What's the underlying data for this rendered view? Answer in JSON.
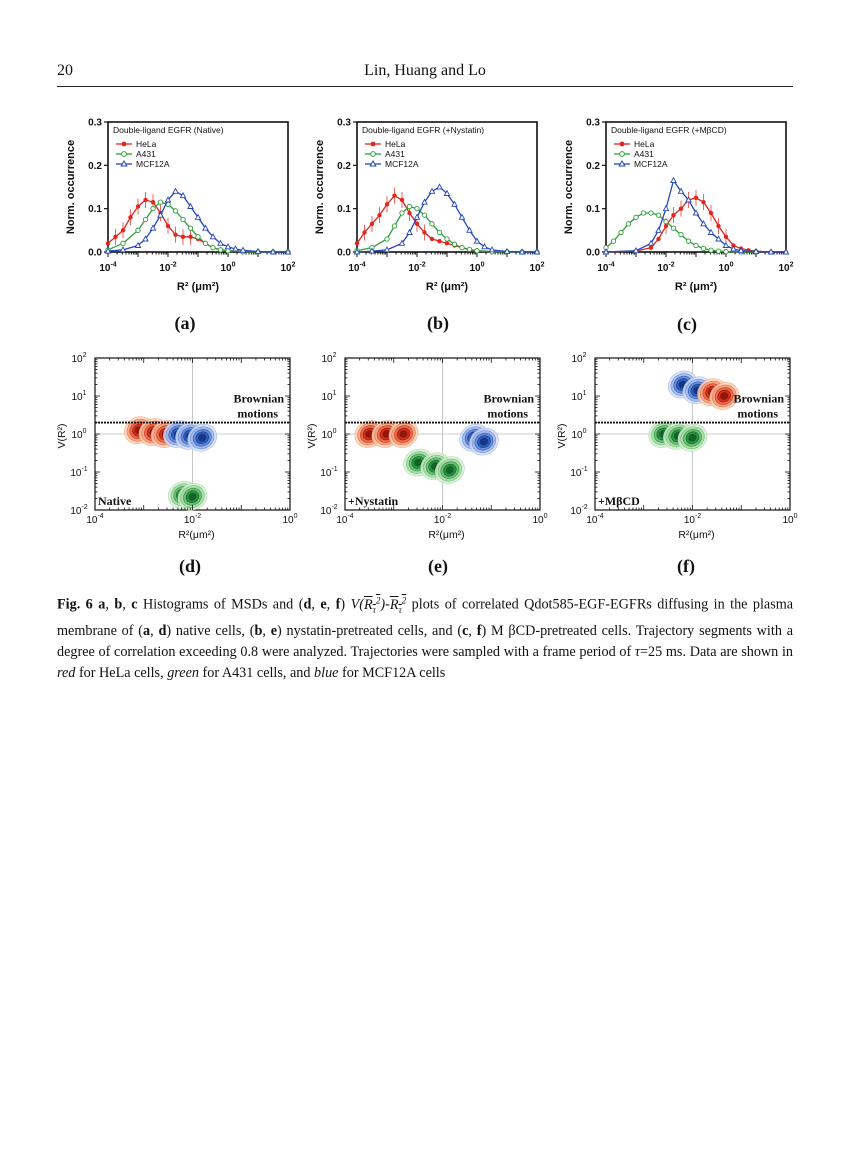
{
  "header": {
    "page_number": "20",
    "running_head": "Lin, Huang and Lo"
  },
  "colors": {
    "hela": "#e0261f",
    "a431": "#2e9e3a",
    "mcf12a": "#2547b8"
  },
  "panel_labels": [
    "(a)",
    "(b)",
    "(c)",
    "(d)",
    "(e)",
    "(f)"
  ],
  "chart_data": [
    {
      "id": "a",
      "type": "line",
      "title": "Double-ligand EGFR (Native)",
      "xlabel": "R² (μm²)",
      "ylabel": "Norm. occurrence",
      "xscale": "log",
      "xlim": [
        0.0001,
        100
      ],
      "ylim": [
        0,
        0.3
      ],
      "yticks": [
        "0.0",
        "0.1",
        "0.2",
        "0.3"
      ],
      "xticks": [
        "10^-4",
        "10^-2",
        "10^0",
        "10^2"
      ],
      "legend": "top-left",
      "series": [
        {
          "name": "HeLa",
          "x": [
            -4,
            -3.75,
            -3.5,
            -3.25,
            -3,
            -2.75,
            -2.5,
            -2.25,
            -2,
            -1.75,
            -1.5,
            -1.25,
            -1,
            -0.75,
            -0.5,
            -0.25,
            0,
            0.5,
            1
          ],
          "y": [
            0.02,
            0.035,
            0.05,
            0.08,
            0.105,
            0.12,
            0.115,
            0.09,
            0.06,
            0.04,
            0.035,
            0.035,
            0.03,
            0.02,
            0.01,
            0.005,
            0.002,
            0.001,
            0
          ]
        },
        {
          "name": "A431",
          "x": [
            -4,
            -3.5,
            -3,
            -2.75,
            -2.5,
            -2.25,
            -2,
            -1.75,
            -1.5,
            -1.25,
            -1,
            -0.75,
            -0.5,
            -0.25,
            0,
            0.5,
            1,
            1.5,
            2
          ],
          "y": [
            0.005,
            0.02,
            0.05,
            0.075,
            0.1,
            0.115,
            0.11,
            0.095,
            0.075,
            0.055,
            0.035,
            0.02,
            0.01,
            0.005,
            0.003,
            0.001,
            0,
            0,
            0
          ]
        },
        {
          "name": "MCF12A",
          "x": [
            -4,
            -3.5,
            -3,
            -2.75,
            -2.5,
            -2.25,
            -2,
            -1.75,
            -1.5,
            -1.25,
            -1,
            -0.75,
            -0.5,
            -0.25,
            0,
            0.25,
            0.5,
            1,
            1.5,
            2
          ],
          "y": [
            0.002,
            0.005,
            0.015,
            0.03,
            0.055,
            0.085,
            0.12,
            0.14,
            0.13,
            0.105,
            0.08,
            0.055,
            0.035,
            0.02,
            0.012,
            0.007,
            0.004,
            0.001,
            0,
            0
          ]
        }
      ]
    },
    {
      "id": "b",
      "type": "line",
      "title": "Double-ligand EGFR (+Nystatin)",
      "xlabel": "R² (μm²)",
      "ylabel": "Norm. occurrence",
      "xscale": "log",
      "xlim": [
        0.0001,
        100
      ],
      "ylim": [
        0,
        0.3
      ],
      "yticks": [
        "0.0",
        "0.1",
        "0.2",
        "0.3"
      ],
      "xticks": [
        "10^-4",
        "10^-2",
        "10^0",
        "10^2"
      ],
      "legend": "top-left",
      "series": [
        {
          "name": "HeLa",
          "x": [
            -4,
            -3.75,
            -3.5,
            -3.25,
            -3,
            -2.75,
            -2.5,
            -2.25,
            -2,
            -1.75,
            -1.5,
            -1.25,
            -1,
            -0.75,
            -0.5,
            -0.25,
            0,
            0.5,
            1
          ],
          "y": [
            0.02,
            0.045,
            0.065,
            0.085,
            0.11,
            0.13,
            0.12,
            0.09,
            0.065,
            0.045,
            0.03,
            0.025,
            0.02,
            0.015,
            0.01,
            0.005,
            0.002,
            0.001,
            0
          ]
        },
        {
          "name": "A431",
          "x": [
            -4,
            -3.5,
            -3,
            -2.75,
            -2.5,
            -2.25,
            -2,
            -1.75,
            -1.5,
            -1.25,
            -1,
            -0.75,
            -0.5,
            -0.25,
            0,
            0.5,
            1,
            1.5,
            2
          ],
          "y": [
            0.003,
            0.01,
            0.03,
            0.06,
            0.09,
            0.105,
            0.1,
            0.085,
            0.065,
            0.045,
            0.03,
            0.018,
            0.01,
            0.006,
            0.003,
            0.001,
            0,
            0,
            0
          ]
        },
        {
          "name": "MCF12A",
          "x": [
            -4,
            -3.5,
            -3,
            -2.5,
            -2.25,
            -2,
            -1.75,
            -1.5,
            -1.25,
            -1,
            -0.75,
            -0.5,
            -0.25,
            0,
            0.25,
            0.5,
            1,
            1.5,
            2
          ],
          "y": [
            0,
            0.002,
            0.005,
            0.02,
            0.045,
            0.08,
            0.115,
            0.14,
            0.15,
            0.135,
            0.11,
            0.08,
            0.05,
            0.025,
            0.012,
            0.005,
            0.001,
            0,
            0
          ]
        }
      ]
    },
    {
      "id": "c",
      "type": "line",
      "title": "Double-ligand EGFR (+MβCD)",
      "xlabel": "R² (μm²)",
      "ylabel": "Norm. occurrence",
      "xscale": "log",
      "xlim": [
        0.0001,
        100
      ],
      "ylim": [
        0,
        0.3
      ],
      "yticks": [
        "0.0",
        "0.1",
        "0.2",
        "0.3"
      ],
      "xticks": [
        "10^-4",
        "10^-2",
        "10^0",
        "10^2"
      ],
      "legend": "top-left",
      "series": [
        {
          "name": "HeLa",
          "x": [
            -4,
            -3,
            -2.5,
            -2.25,
            -2,
            -1.75,
            -1.5,
            -1.25,
            -1,
            -0.75,
            -0.5,
            -0.25,
            0,
            0.25,
            0.5,
            0.75,
            1,
            1.5,
            2
          ],
          "y": [
            0,
            0.002,
            0.01,
            0.03,
            0.06,
            0.085,
            0.1,
            0.12,
            0.125,
            0.115,
            0.09,
            0.06,
            0.035,
            0.015,
            0.008,
            0.004,
            0.002,
            0,
            0
          ]
        },
        {
          "name": "A431",
          "x": [
            -4,
            -3.75,
            -3.5,
            -3.25,
            -3,
            -2.75,
            -2.5,
            -2.25,
            -2,
            -1.75,
            -1.5,
            -1.25,
            -1,
            -0.75,
            -0.5,
            -0.25,
            0,
            0.5,
            1
          ],
          "y": [
            0.01,
            0.025,
            0.045,
            0.065,
            0.08,
            0.09,
            0.09,
            0.085,
            0.07,
            0.055,
            0.04,
            0.025,
            0.015,
            0.008,
            0.004,
            0.002,
            0.001,
            0,
            0
          ]
        },
        {
          "name": "MCF12A",
          "x": [
            -4,
            -3,
            -2.5,
            -2.25,
            -2,
            -1.75,
            -1.5,
            -1.25,
            -1,
            -0.75,
            -0.5,
            -0.25,
            0,
            0.25,
            0.5,
            1,
            1.5,
            2
          ],
          "y": [
            0,
            0.003,
            0.02,
            0.05,
            0.1,
            0.165,
            0.14,
            0.12,
            0.09,
            0.065,
            0.045,
            0.03,
            0.015,
            0.007,
            0.003,
            0.001,
            0,
            0
          ]
        }
      ]
    },
    {
      "id": "d",
      "type": "heatmap",
      "annotation": "Native",
      "region_label": "Brownian motions",
      "xlabel": "R²(μm²)",
      "ylabel": "V(R²)",
      "xscale": "log",
      "yscale": "log",
      "xlim": [
        0.0001,
        1
      ],
      "ylim": [
        0.01,
        100
      ],
      "xticks": [
        "10^-4",
        "10^-2",
        "10^0"
      ],
      "yticks": [
        "10^-2",
        "10^-1",
        "10^0",
        "10^1",
        "10^2"
      ],
      "brownian_threshold": 2,
      "clusters": [
        {
          "series": "HeLa",
          "lobes": [
            [
              -3.1,
              0.1
            ],
            [
              -2.8,
              0.05
            ],
            [
              -2.55,
              0.0
            ]
          ]
        },
        {
          "series": "MCF12A",
          "lobes": [
            [
              -2.3,
              0.0
            ],
            [
              -2.05,
              -0.05
            ],
            [
              -1.8,
              -0.1
            ]
          ]
        },
        {
          "series": "A431",
          "lobes": [
            [
              -2.2,
              -1.6
            ],
            [
              -2.0,
              -1.65
            ]
          ]
        }
      ]
    },
    {
      "id": "e",
      "type": "heatmap",
      "annotation": "+Nystatin",
      "region_label": "Brownian motions",
      "xlabel": "R²(μm²)",
      "ylabel": "V(R²)",
      "xscale": "log",
      "yscale": "log",
      "xlim": [
        0.0001,
        1
      ],
      "ylim": [
        0.01,
        100
      ],
      "xticks": [
        "10^-4",
        "10^-2",
        "10^0"
      ],
      "yticks": [
        "10^-2",
        "10^-1",
        "10^0",
        "10^1",
        "10^2"
      ],
      "brownian_threshold": 2,
      "clusters": [
        {
          "series": "HeLa",
          "lobes": [
            [
              -3.5,
              0.0
            ],
            [
              -3.15,
              0.0
            ],
            [
              -2.8,
              0.0
            ]
          ]
        },
        {
          "series": "A431",
          "lobes": [
            [
              -2.5,
              -0.75
            ],
            [
              -2.15,
              -0.85
            ],
            [
              -1.85,
              -0.95
            ]
          ]
        },
        {
          "series": "MCF12A",
          "lobes": [
            [
              -1.35,
              -0.1
            ],
            [
              -1.15,
              -0.2
            ]
          ]
        }
      ]
    },
    {
      "id": "f",
      "type": "heatmap",
      "annotation": "+MβCD",
      "region_label": "Brownian motions",
      "xlabel": "R²(μm²)",
      "ylabel": "V(R²)",
      "xscale": "log",
      "yscale": "log",
      "xlim": [
        0.0001,
        1
      ],
      "ylim": [
        0.01,
        100
      ],
      "xticks": [
        "10^-4",
        "10^-2",
        "10^0"
      ],
      "yticks": [
        "10^-2",
        "10^-1",
        "10^0",
        "10^1",
        "10^2"
      ],
      "brownian_threshold": 2,
      "clusters": [
        {
          "series": "A431",
          "lobes": [
            [
              -2.6,
              0.0
            ],
            [
              -2.3,
              -0.05
            ],
            [
              -2.0,
              -0.1
            ]
          ]
        },
        {
          "series": "MCF12A",
          "lobes": [
            [
              -2.2,
              1.3
            ],
            [
              -1.9,
              1.15
            ]
          ]
        },
        {
          "series": "HeLa",
          "lobes": [
            [
              -1.6,
              1.1
            ],
            [
              -1.35,
              1.0
            ]
          ]
        }
      ]
    }
  ],
  "caption": {
    "fig_label": "Fig. 6",
    "p1_abc": "a",
    "p1_b": "b",
    "p1_c": "c",
    "t1": " Histograms of MSDs and (",
    "d": "d",
    "e": "e",
    "f": "f",
    "t2": ") ",
    "v_expr": "V",
    "t3": " plots of correlated Qdot585-EGF-EGFRs diffusing in the plasma membrane of (",
    "t4": ") native cells, (",
    "t5": ") nystatin-pretreated cells, and (",
    "t6": ") M βCD-pretreated cells. Trajectory segments with a degree of correlation exceeding 0.8 were analyzed. Trajectories were sampled with a frame period of ",
    "tau": "τ",
    "t7": "=25 ms. Data are shown in ",
    "red": "red",
    "t8": " for HeLa cells, ",
    "green": "green",
    "t9": " for A431 cells, and ",
    "blue": "blue",
    "t10": " for MCF12A cells"
  }
}
